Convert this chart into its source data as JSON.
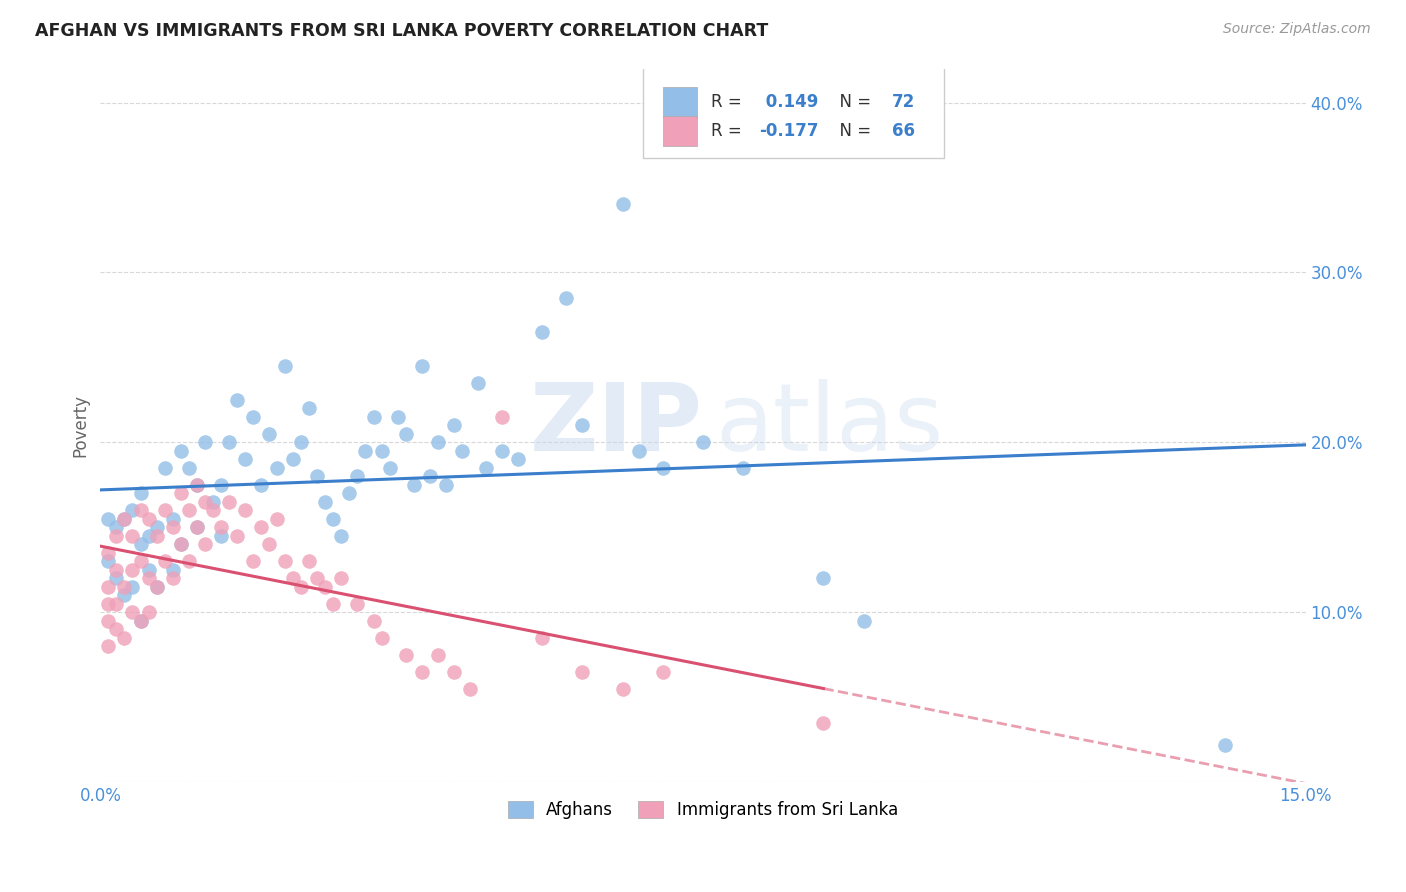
{
  "title": "AFGHAN VS IMMIGRANTS FROM SRI LANKA POVERTY CORRELATION CHART",
  "source": "Source: ZipAtlas.com",
  "ylabel": "Poverty",
  "xlim": [
    0.0,
    0.15
  ],
  "ylim": [
    0.0,
    0.42
  ],
  "blue_color": "#92BEE8",
  "pink_color": "#F0A0B8",
  "blue_line_color": "#3B7FCC",
  "pink_line_color": "#D95070",
  "R_blue": 0.149,
  "N_blue": 72,
  "R_pink": -0.177,
  "N_pink": 66,
  "watermark_zip": "ZIP",
  "watermark_atlas": "atlas",
  "background_color": "#ffffff",
  "grid_color": "#d8d8d8",
  "blue_points_x": [
    0.001,
    0.001,
    0.002,
    0.002,
    0.003,
    0.003,
    0.004,
    0.004,
    0.005,
    0.005,
    0.005,
    0.006,
    0.006,
    0.007,
    0.007,
    0.008,
    0.009,
    0.009,
    0.01,
    0.01,
    0.011,
    0.012,
    0.012,
    0.013,
    0.014,
    0.015,
    0.015,
    0.016,
    0.017,
    0.018,
    0.019,
    0.02,
    0.021,
    0.022,
    0.023,
    0.024,
    0.025,
    0.026,
    0.027,
    0.028,
    0.029,
    0.03,
    0.031,
    0.032,
    0.033,
    0.034,
    0.035,
    0.036,
    0.037,
    0.038,
    0.039,
    0.04,
    0.041,
    0.042,
    0.043,
    0.044,
    0.045,
    0.047,
    0.048,
    0.05,
    0.052,
    0.055,
    0.058,
    0.06,
    0.065,
    0.067,
    0.07,
    0.075,
    0.08,
    0.09,
    0.095,
    0.14
  ],
  "blue_points_y": [
    0.155,
    0.13,
    0.15,
    0.12,
    0.155,
    0.11,
    0.16,
    0.115,
    0.14,
    0.095,
    0.17,
    0.145,
    0.125,
    0.15,
    0.115,
    0.185,
    0.125,
    0.155,
    0.14,
    0.195,
    0.185,
    0.175,
    0.15,
    0.2,
    0.165,
    0.145,
    0.175,
    0.2,
    0.225,
    0.19,
    0.215,
    0.175,
    0.205,
    0.185,
    0.245,
    0.19,
    0.2,
    0.22,
    0.18,
    0.165,
    0.155,
    0.145,
    0.17,
    0.18,
    0.195,
    0.215,
    0.195,
    0.185,
    0.215,
    0.205,
    0.175,
    0.245,
    0.18,
    0.2,
    0.175,
    0.21,
    0.195,
    0.235,
    0.185,
    0.195,
    0.19,
    0.265,
    0.285,
    0.21,
    0.34,
    0.195,
    0.185,
    0.2,
    0.185,
    0.12,
    0.095,
    0.022
  ],
  "pink_points_x": [
    0.001,
    0.001,
    0.001,
    0.001,
    0.001,
    0.002,
    0.002,
    0.002,
    0.002,
    0.003,
    0.003,
    0.003,
    0.004,
    0.004,
    0.004,
    0.005,
    0.005,
    0.005,
    0.006,
    0.006,
    0.006,
    0.007,
    0.007,
    0.008,
    0.008,
    0.009,
    0.009,
    0.01,
    0.01,
    0.011,
    0.011,
    0.012,
    0.012,
    0.013,
    0.013,
    0.014,
    0.015,
    0.016,
    0.017,
    0.018,
    0.019,
    0.02,
    0.021,
    0.022,
    0.023,
    0.024,
    0.025,
    0.026,
    0.027,
    0.028,
    0.029,
    0.03,
    0.032,
    0.034,
    0.035,
    0.038,
    0.04,
    0.042,
    0.044,
    0.046,
    0.05,
    0.055,
    0.06,
    0.065,
    0.07,
    0.09
  ],
  "pink_points_y": [
    0.135,
    0.115,
    0.105,
    0.095,
    0.08,
    0.145,
    0.125,
    0.105,
    0.09,
    0.155,
    0.115,
    0.085,
    0.145,
    0.125,
    0.1,
    0.16,
    0.13,
    0.095,
    0.155,
    0.12,
    0.1,
    0.145,
    0.115,
    0.16,
    0.13,
    0.15,
    0.12,
    0.17,
    0.14,
    0.16,
    0.13,
    0.175,
    0.15,
    0.165,
    0.14,
    0.16,
    0.15,
    0.165,
    0.145,
    0.16,
    0.13,
    0.15,
    0.14,
    0.155,
    0.13,
    0.12,
    0.115,
    0.13,
    0.12,
    0.115,
    0.105,
    0.12,
    0.105,
    0.095,
    0.085,
    0.075,
    0.065,
    0.075,
    0.065,
    0.055,
    0.215,
    0.085,
    0.065,
    0.055,
    0.065,
    0.035
  ]
}
